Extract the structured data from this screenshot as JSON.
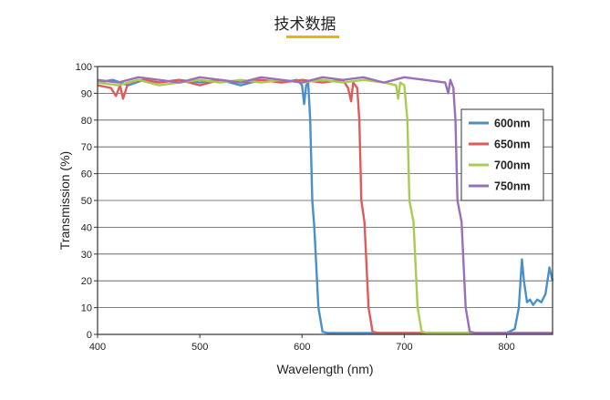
{
  "page": {
    "title": "技术数据",
    "accent_color": "#f0b400"
  },
  "chart_data": {
    "type": "line",
    "xlabel": "Wavelength (nm)",
    "ylabel": "Transmission (%)",
    "xlim": [
      400,
      845
    ],
    "ylim": [
      0,
      100
    ],
    "x_ticks": [
      400,
      500,
      600,
      700,
      800
    ],
    "y_ticks": [
      0,
      10,
      20,
      30,
      40,
      50,
      60,
      70,
      80,
      90,
      100
    ],
    "grid": "horizontal",
    "legend_position": "right",
    "series": [
      {
        "name": "600nm",
        "color": "#4a90c8",
        "points": [
          [
            400,
            94
          ],
          [
            415,
            95
          ],
          [
            430,
            93
          ],
          [
            445,
            95
          ],
          [
            460,
            94
          ],
          [
            480,
            95
          ],
          [
            500,
            94
          ],
          [
            520,
            95
          ],
          [
            540,
            93
          ],
          [
            560,
            95
          ],
          [
            580,
            94
          ],
          [
            595,
            95
          ],
          [
            600,
            93
          ],
          [
            602,
            86
          ],
          [
            604,
            93
          ],
          [
            606,
            94
          ],
          [
            608,
            80
          ],
          [
            610,
            50
          ],
          [
            612,
            40
          ],
          [
            616,
            10
          ],
          [
            620,
            1
          ],
          [
            625,
            0.5
          ],
          [
            650,
            0.5
          ],
          [
            700,
            0.5
          ],
          [
            750,
            0.5
          ],
          [
            800,
            0.5
          ],
          [
            808,
            2
          ],
          [
            812,
            10
          ],
          [
            815,
            28
          ],
          [
            817,
            20
          ],
          [
            820,
            12
          ],
          [
            823,
            13
          ],
          [
            826,
            11
          ],
          [
            830,
            13
          ],
          [
            834,
            12
          ],
          [
            838,
            15
          ],
          [
            842,
            25
          ],
          [
            845,
            20
          ]
        ]
      },
      {
        "name": "650nm",
        "color": "#e05a5a",
        "points": [
          [
            400,
            93
          ],
          [
            413,
            92
          ],
          [
            418,
            89
          ],
          [
            422,
            93
          ],
          [
            425,
            88
          ],
          [
            430,
            94
          ],
          [
            445,
            95
          ],
          [
            460,
            94
          ],
          [
            480,
            95
          ],
          [
            500,
            93
          ],
          [
            520,
            95
          ],
          [
            540,
            94
          ],
          [
            560,
            95
          ],
          [
            580,
            94
          ],
          [
            600,
            95
          ],
          [
            620,
            94
          ],
          [
            640,
            95
          ],
          [
            645,
            92
          ],
          [
            648,
            87
          ],
          [
            650,
            94
          ],
          [
            654,
            92
          ],
          [
            656,
            80
          ],
          [
            658,
            50
          ],
          [
            661,
            42
          ],
          [
            665,
            10
          ],
          [
            669,
            1
          ],
          [
            675,
            0.5
          ],
          [
            700,
            0.5
          ],
          [
            750,
            0.5
          ],
          [
            800,
            0.5
          ],
          [
            845,
            0.5
          ]
        ]
      },
      {
        "name": "700nm",
        "color": "#a8cc52",
        "points": [
          [
            400,
            94
          ],
          [
            420,
            93
          ],
          [
            440,
            95
          ],
          [
            460,
            93
          ],
          [
            480,
            94
          ],
          [
            500,
            95
          ],
          [
            520,
            94
          ],
          [
            540,
            95
          ],
          [
            560,
            94
          ],
          [
            580,
            95
          ],
          [
            600,
            94
          ],
          [
            620,
            95
          ],
          [
            640,
            94
          ],
          [
            660,
            95
          ],
          [
            680,
            94
          ],
          [
            692,
            93
          ],
          [
            694,
            88
          ],
          [
            696,
            94
          ],
          [
            700,
            93
          ],
          [
            703,
            80
          ],
          [
            705,
            50
          ],
          [
            709,
            42
          ],
          [
            713,
            10
          ],
          [
            717,
            1
          ],
          [
            723,
            0.5
          ],
          [
            750,
            0.5
          ],
          [
            800,
            0.5
          ],
          [
            845,
            0.5
          ]
        ]
      },
      {
        "name": "750nm",
        "color": "#9b6fb8",
        "points": [
          [
            400,
            95
          ],
          [
            420,
            94
          ],
          [
            440,
            96
          ],
          [
            460,
            95
          ],
          [
            480,
            94
          ],
          [
            500,
            96
          ],
          [
            520,
            95
          ],
          [
            540,
            94
          ],
          [
            560,
            96
          ],
          [
            580,
            95
          ],
          [
            600,
            94
          ],
          [
            620,
            96
          ],
          [
            640,
            95
          ],
          [
            660,
            96
          ],
          [
            680,
            94
          ],
          [
            700,
            96
          ],
          [
            720,
            95
          ],
          [
            740,
            94
          ],
          [
            743,
            90
          ],
          [
            745,
            95
          ],
          [
            748,
            92
          ],
          [
            750,
            80
          ],
          [
            752,
            50
          ],
          [
            756,
            42
          ],
          [
            760,
            10
          ],
          [
            764,
            1
          ],
          [
            770,
            0.5
          ],
          [
            800,
            0.5
          ],
          [
            845,
            0.5
          ]
        ]
      }
    ]
  }
}
